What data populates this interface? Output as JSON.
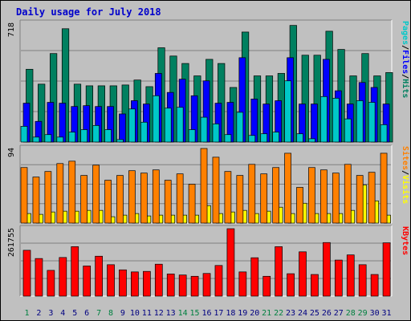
{
  "chart_data": {
    "type": "bar",
    "title": "Daily usage for July 2018",
    "categories": [
      "1",
      "2",
      "3",
      "4",
      "5",
      "6",
      "7",
      "8",
      "9",
      "10",
      "11",
      "12",
      "13",
      "14",
      "15",
      "16",
      "17",
      "18",
      "19",
      "20",
      "21",
      "22",
      "23",
      "24",
      "25",
      "26",
      "27",
      "28",
      "29",
      "30",
      "31"
    ],
    "weekend_days": [
      "1",
      "7",
      "8",
      "14",
      "15",
      "21",
      "22",
      "28",
      "29"
    ],
    "weekend_label_color": "#008040",
    "weekday_label_color": "#000080",
    "panels": [
      {
        "ymax_label": "718",
        "ymax": 718,
        "side_label": {
          "parts": [
            {
              "text": "Pages",
              "color": "#00c8c8"
            },
            {
              "text": "/",
              "color": "#000000"
            },
            {
              "text": "Files",
              "color": "#0000ff"
            },
            {
              "text": "/",
              "color": "#000000"
            },
            {
              "text": "Hits",
              "color": "#008060"
            }
          ]
        },
        "series": [
          {
            "name": "Hits",
            "color": "#008060",
            "values": [
              440,
              350,
              535,
              685,
              350,
              340,
              340,
              340,
              345,
              375,
              335,
              570,
              520,
              475,
              400,
              500,
              475,
              330,
              665,
              400,
              400,
              415,
              705,
              525,
              525,
              670,
              560,
              400,
              535,
              400,
              420
            ]
          },
          {
            "name": "Files",
            "color": "#0000ff",
            "values": [
              235,
              125,
              240,
              235,
              215,
              220,
              215,
              215,
              170,
              250,
              230,
              415,
              300,
              380,
              280,
              370,
              235,
              240,
              510,
              260,
              230,
              250,
              510,
              230,
              230,
              500,
              310,
              230,
              360,
              330,
              230
            ]
          },
          {
            "name": "Pages",
            "color": "#00c8c8",
            "values": [
              95,
              30,
              45,
              30,
              60,
              75,
              100,
              75,
              15,
              200,
              120,
              280,
              205,
              210,
              75,
              150,
              110,
              45,
              180,
              40,
              50,
              60,
              370,
              50,
              20,
              275,
              265,
              140,
              250,
              240,
              105
            ]
          }
        ]
      },
      {
        "ymax_label": "94",
        "ymax": 94,
        "side_label": {
          "parts": [
            {
              "text": "Sites",
              "color": "#ff8000"
            },
            {
              "text": "/",
              "color": "#000000"
            },
            {
              "text": "Visits",
              "color": "#ffff00"
            }
          ]
        },
        "series": [
          {
            "name": "Visits",
            "color": "#ffff00",
            "values": [
              12,
              11,
              14,
              15,
              15,
              16,
              16,
              8,
              10,
              12,
              9,
              10,
              10,
              10,
              10,
              22,
              12,
              14,
              16,
              12,
              15,
              20,
              12,
              25,
              12,
              12,
              12,
              16,
              48,
              28,
              10
            ]
          },
          {
            "name": "Sites",
            "color": "#ff8000",
            "values": [
              70,
              58,
              65,
              75,
              78,
              60,
              73,
              54,
              60,
              66,
              63,
              67,
              54,
              62,
              49,
              94,
              83,
              65,
              60,
              74,
              62,
              70,
              88,
              45,
              70,
              67,
              63,
              74,
              60,
              64,
              88
            ]
          }
        ]
      },
      {
        "ymax_label": "261755",
        "ymax": 261755,
        "side_label": {
          "parts": [
            {
              "text": "KBytes",
              "color": "#ff0000"
            }
          ]
        },
        "series": [
          {
            "name": "KBytes",
            "color": "#ff0000",
            "values": [
              178000,
              146000,
              100000,
              150000,
              192000,
              117000,
              155000,
              122000,
              102000,
              94000,
              96000,
              124000,
              86000,
              82000,
              77000,
              88000,
              119000,
              261755,
              94000,
              149000,
              77000,
              192000,
              87000,
              172000,
              84000,
              208000,
              140000,
              160000,
              122000,
              84000,
              207000
            ]
          }
        ]
      }
    ]
  }
}
